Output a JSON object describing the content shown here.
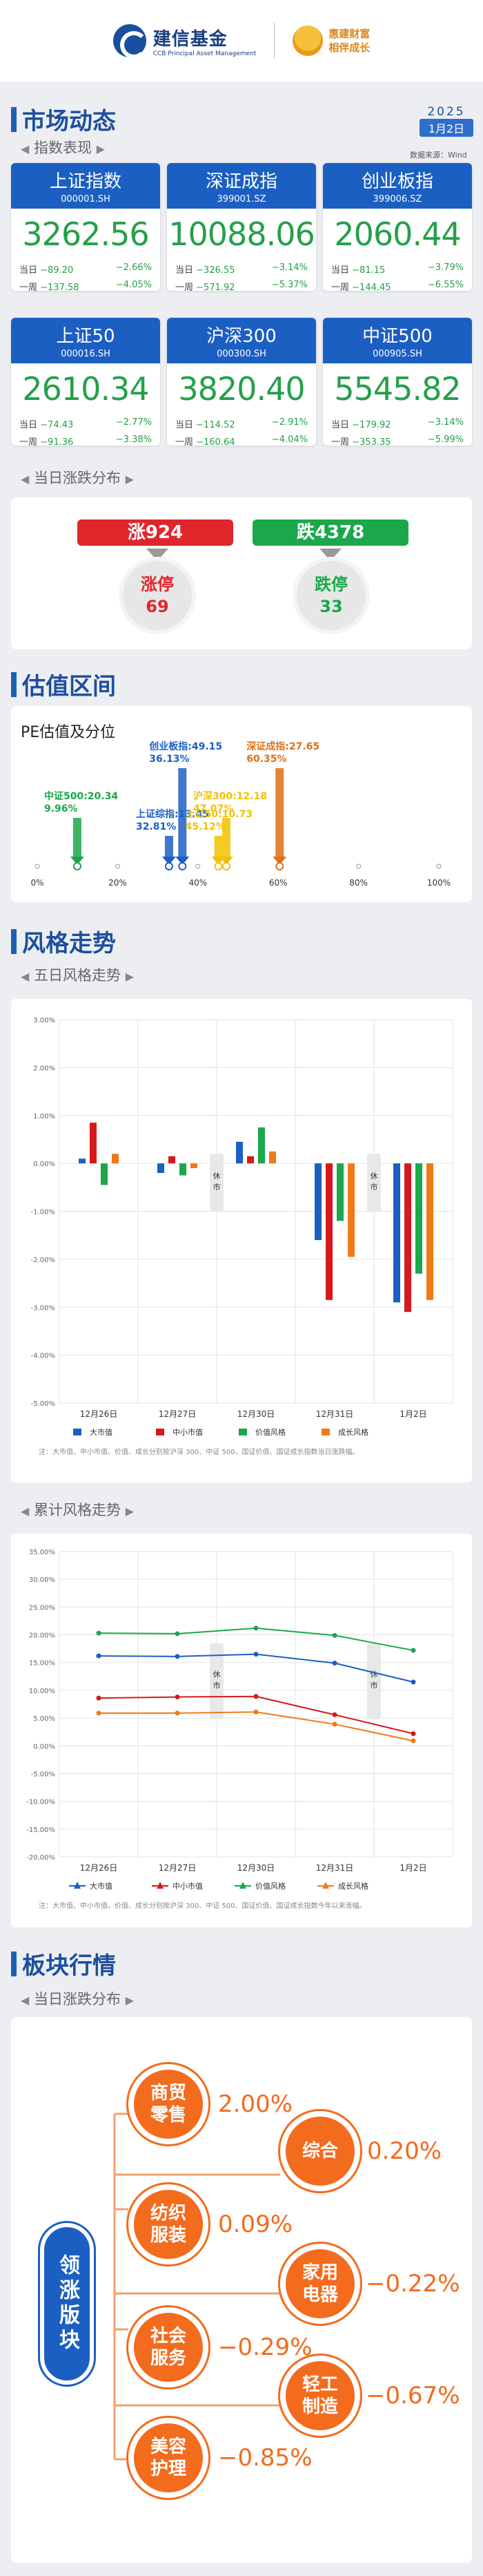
{
  "header": {
    "brand_cn": "建信基金",
    "brand_en": "CCB Principal Asset Management",
    "slogan_line1": "惠建财富",
    "slogan_line2": "相伴成长"
  },
  "market": {
    "title": "市场动态",
    "sub_index": "指数表现",
    "year": "2025",
    "date": "1月2日",
    "source": "数据来源：Wind",
    "cards": [
      {
        "name": "上证指数",
        "code": "000001.SH",
        "value": "3262.56",
        "day_label": "当日",
        "day_pts": "−89.20",
        "day_pct": "−2.66%",
        "week_label": "一周",
        "week_pts": "−137.58",
        "week_pct": "−4.05%"
      },
      {
        "name": "深证成指",
        "code": "399001.SZ",
        "value": "10088.06",
        "day_label": "当日",
        "day_pts": "−326.55",
        "day_pct": "−3.14%",
        "week_label": "一周",
        "week_pts": "−571.92",
        "week_pct": "−5.37%"
      },
      {
        "name": "创业板指",
        "code": "399006.SZ",
        "value": "2060.44",
        "day_label": "当日",
        "day_pts": "−81.15",
        "day_pct": "−3.79%",
        "week_label": "一周",
        "week_pts": "−144.45",
        "week_pct": "−6.55%"
      },
      {
        "name": "上证50",
        "code": "000016.SH",
        "value": "2610.34",
        "day_label": "当日",
        "day_pts": "−74.43",
        "day_pct": "−2.77%",
        "week_label": "一周",
        "week_pts": "−91.36",
        "week_pct": "−3.38%"
      },
      {
        "name": "沪深300",
        "code": "000300.SH",
        "value": "3820.40",
        "day_label": "当日",
        "day_pts": "−114.52",
        "day_pct": "−2.91%",
        "week_label": "一周",
        "week_pts": "−160.64",
        "week_pct": "−4.04%"
      },
      {
        "name": "中证500",
        "code": "000905.SH",
        "value": "5545.82",
        "day_label": "当日",
        "day_pts": "−179.92",
        "day_pct": "−3.14%",
        "week_label": "一周",
        "week_pts": "−353.35",
        "week_pct": "−5.99%"
      }
    ],
    "sub_updown": "当日涨跌分布",
    "up_label": "涨924",
    "down_label": "跌4378",
    "limit_up_label": "涨停",
    "limit_up_value": "69",
    "limit_down_label": "跌停",
    "limit_down_value": "33",
    "colors": {
      "up": "#e0262b",
      "down": "#1aa84a",
      "accent": "#1c5fc3"
    }
  },
  "valuation": {
    "title": "估值区间",
    "chart_title": "PE估值及分位",
    "items": [
      {
        "name": "中证500",
        "pe": "20.34",
        "pct_text": "9.96%",
        "percentile": 9.96,
        "color": "#1aa84a"
      },
      {
        "name": "上证综指",
        "pe": "13.45",
        "pct_text": "32.81%",
        "percentile": 32.81,
        "color": "#1c5fc3"
      },
      {
        "name": "创业板指",
        "pe": "49.15",
        "pct_text": "36.13%",
        "percentile": 36.13,
        "color": "#1c5fc3"
      },
      {
        "name": "沪深300",
        "pe": "12.18",
        "pct_text": "47.07%",
        "percentile": 47.07,
        "color": "#f2c200"
      },
      {
        "name": "上证50",
        "pe": "10.73",
        "pct_text": "45.12%",
        "percentile": 45.12,
        "color": "#f2c200"
      },
      {
        "name": "深证成指",
        "pe": "27.65",
        "pct_text": "60.35%",
        "percentile": 60.35,
        "color": "#e06f15"
      }
    ],
    "axis_ticks": [
      "0%",
      "20%",
      "40%",
      "60%",
      "80%",
      "100%"
    ]
  },
  "style": {
    "title": "风格走势",
    "sub_five": "五日风格走势",
    "sub_cum": "累计风格走势",
    "rest_label": "休市",
    "note_five": "注：大市值、中小市值、价值、成长分别按沪深 300、中证 500、国证价值、国证成长指数当日涨跌幅。",
    "note_cum": "注：大市值、中小市值、价值、成长分别按沪深 300、中证 500、国证价值、国证成长指数今年以来涨幅。"
  },
  "chart_data": [
    {
      "type": "bar",
      "categories": [
        "12月26日",
        "12月27日",
        "12月30日",
        "12月31日",
        "1月2日"
      ],
      "ylim": [
        -5,
        3
      ],
      "yticks": [
        "3.00%",
        "2.00%",
        "1.00%",
        "0.00%",
        "-1.00%",
        "-2.00%",
        "-3.00%",
        "-4.00%",
        "-5.00%"
      ],
      "series": [
        {
          "name": "大市值",
          "color": "#1c5fc3",
          "values": [
            0.1,
            -0.2,
            0.45,
            -1.6,
            -2.9
          ]
        },
        {
          "name": "中小市值",
          "color": "#d7191c",
          "values": [
            0.85,
            0.15,
            0.15,
            -2.85,
            -3.1
          ]
        },
        {
          "name": "价值风格",
          "color": "#1aa84a",
          "values": [
            -0.45,
            -0.25,
            0.75,
            -1.2,
            -2.3
          ]
        },
        {
          "name": "成长风格",
          "color": "#f07a18",
          "values": [
            0.2,
            -0.1,
            0.25,
            -1.95,
            -2.85
          ]
        }
      ]
    },
    {
      "type": "line",
      "categories": [
        "12月26日",
        "12月27日",
        "12月30日",
        "12月31日",
        "1月2日"
      ],
      "ylim": [
        -20,
        35
      ],
      "yticks": [
        "35.00%",
        "30.00%",
        "25.00%",
        "20.00%",
        "15.00%",
        "10.00%",
        "5.00%",
        "0.00%",
        "-5.00%",
        "-10.00%",
        "-15.00%",
        "-20.00%"
      ],
      "series": [
        {
          "name": "大市值",
          "color": "#1c5fc3",
          "values": [
            16.2,
            16.1,
            16.5,
            14.9,
            11.5
          ]
        },
        {
          "name": "中小市值",
          "color": "#d7191c",
          "values": [
            8.6,
            8.8,
            8.9,
            5.6,
            2.2
          ]
        },
        {
          "name": "价值风格",
          "color": "#1aa84a",
          "values": [
            20.3,
            20.2,
            21.2,
            19.9,
            17.2
          ]
        },
        {
          "name": "成长风格",
          "color": "#f07a18",
          "values": [
            5.9,
            5.9,
            6.1,
            3.9,
            0.9
          ]
        }
      ]
    }
  ],
  "sector": {
    "title": "板块行情",
    "sub": "当日涨跌分布",
    "lead_label": "领涨版块",
    "items": [
      {
        "name": "商贸零售",
        "value": "2.00%"
      },
      {
        "name": "综合",
        "value": "0.20%"
      },
      {
        "name": "纺织服装",
        "value": "0.09%"
      },
      {
        "name": "家用电器",
        "value": "−0.22%"
      },
      {
        "name": "社会服务",
        "value": "−0.29%"
      },
      {
        "name": "轻工制造",
        "value": "−0.67%"
      },
      {
        "name": "美容护理",
        "value": "−0.85%"
      }
    ]
  }
}
